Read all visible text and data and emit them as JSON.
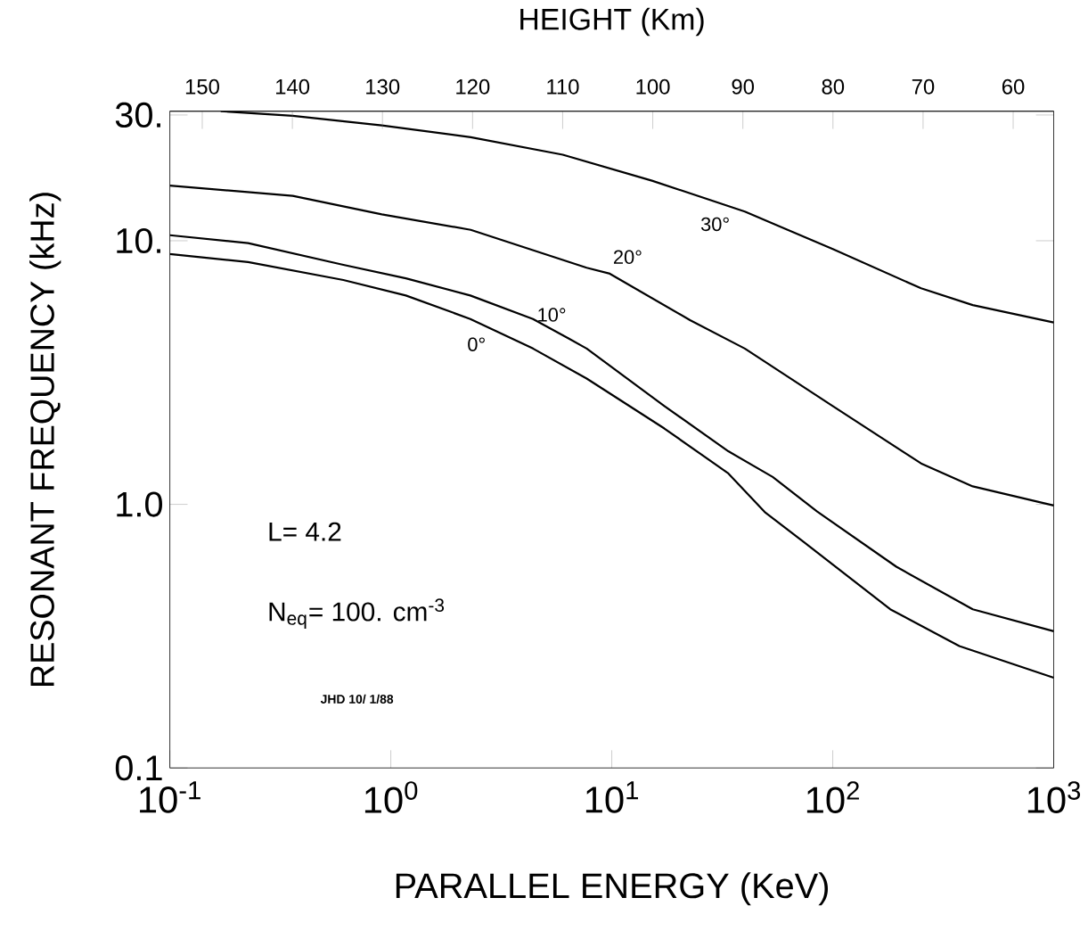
{
  "chart_data": {
    "type": "line",
    "xlabel": "PARALLEL ENERGY (KeV)",
    "ylabel": "RESONANT FREQUENCY (kHz)",
    "x2label": "HEIGHT (Km)",
    "log": "xy",
    "xlim": [
      0.1,
      1000
    ],
    "ylim": [
      0.1,
      31
    ],
    "xticks": [
      {
        "value": 0.1,
        "label": "10$^{-1}$"
      },
      {
        "value": 1,
        "label": "10$^{0}$"
      },
      {
        "value": 10,
        "label": "10$^{1}$"
      },
      {
        "value": 100,
        "label": "10$^{2}$"
      },
      {
        "value": 1000,
        "label": "10$^{3}$"
      }
    ],
    "yticks": [
      0.1,
      {
        "value": 1,
        "label": "1.0"
      },
      {
        "value": 10,
        "label": "10."
      },
      {
        "value": 30,
        "label": "30."
      }
    ],
    "x2lim": [
      153.6,
      55.5
    ],
    "x2ticks": [
      150,
      140,
      130,
      120,
      110,
      100,
      90,
      80,
      70,
      60
    ],
    "marker": "none",
    "line_style": "solid",
    "series": [
      {
        "name": "0°",
        "color": "#000000",
        "x": [
          0.1,
          0.226,
          0.61,
          1.17,
          2.29,
          4.4,
          7.7,
          17.3,
          33.7,
          49.6,
          74,
          182,
          374,
          1000
        ],
        "values": [
          8.9,
          8.3,
          7.1,
          6.2,
          5.05,
          3.9,
          3.0,
          1.94,
          1.31,
          0.93,
          0.72,
          0.4,
          0.29,
          0.22
        ]
      },
      {
        "name": "10°",
        "color": "#000000",
        "x": [
          0.1,
          0.226,
          0.61,
          1.17,
          2.29,
          4.4,
          6.4,
          7.7,
          17.3,
          33.7,
          53.5,
          85,
          194,
          430,
          1000
        ],
        "values": [
          10.5,
          9.8,
          8.1,
          7.2,
          6.2,
          5.05,
          4.25,
          3.9,
          2.36,
          1.59,
          1.27,
          0.94,
          0.58,
          0.4,
          0.33
        ]
      },
      {
        "name": "20°",
        "color": "#000000",
        "x": [
          0.1,
          0.36,
          0.91,
          2.3,
          7.7,
          9.8,
          22.6,
          40,
          100,
          251,
          430,
          1000
        ],
        "values": [
          16.2,
          14.8,
          12.6,
          11.0,
          7.9,
          7.5,
          5.0,
          3.9,
          2.36,
          1.43,
          1.17,
          0.99
        ]
      },
      {
        "name": "30°",
        "color": "#000000",
        "x": [
          0.17,
          0.36,
          0.91,
          2.3,
          6.0,
          15.2,
          40,
          100,
          251,
          430,
          1000
        ],
        "values": [
          31,
          29.8,
          27.4,
          24.7,
          21.2,
          16.9,
          12.9,
          9.3,
          6.6,
          5.7,
          4.9
        ]
      }
    ],
    "annotations": [
      "L= 4.2",
      "N$_{eq}$= 100. cm$^{-3}$",
      "JHD 10/ 1/88"
    ]
  }
}
